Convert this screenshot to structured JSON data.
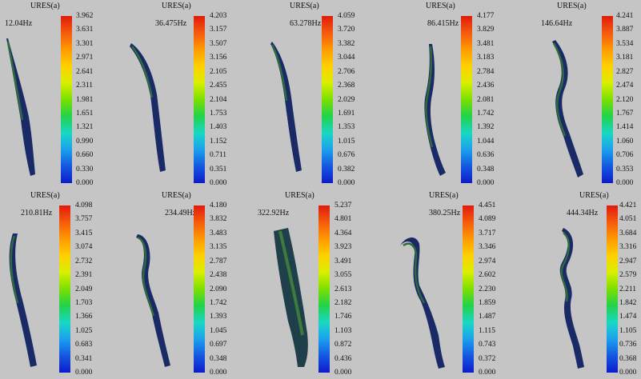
{
  "label": "URES(a)",
  "colors": {
    "background": "#c5c5c5",
    "scale_top": "#e11a0c",
    "scale_bottom": "#0d1bcc",
    "model_dark": "#1a2a66",
    "model_mid": "#2f6a3a"
  },
  "panels": [
    {
      "freq": "12.04Hz",
      "ticks": [
        "3.962",
        "3.631",
        "3.301",
        "2.971",
        "2.641",
        "2.311",
        "1.981",
        "1.651",
        "1.321",
        "0.990",
        "0.660",
        "0.330",
        "0.000"
      ]
    },
    {
      "freq": "36.475Hz",
      "ticks": [
        "4.203",
        "3.157",
        "3.507",
        "3.156",
        "2.105",
        "2.455",
        "2.104",
        "1.753",
        "1.403",
        "1.152",
        "0.711",
        "0.351",
        "0.000"
      ]
    },
    {
      "freq": "63.278Hz",
      "ticks": [
        "4.059",
        "3.720",
        "3.382",
        "3.044",
        "2.706",
        "2.368",
        "2.029",
        "1.691",
        "1.353",
        "1.015",
        "0.676",
        "0.382",
        "0.000"
      ]
    },
    {
      "freq": "86.415Hz",
      "ticks": [
        "4.177",
        "3.829",
        "3.481",
        "3.183",
        "2.784",
        "2.436",
        "2.081",
        "1.742",
        "1.392",
        "1.044",
        "0.636",
        "0.348",
        "0.000"
      ]
    },
    {
      "freq": "146.64Hz",
      "ticks": [
        "4.241",
        "3.887",
        "3.534",
        "3.181",
        "2.827",
        "2.474",
        "2.120",
        "1.767",
        "1.414",
        "1.060",
        "0.706",
        "0.353",
        "0.000"
      ]
    },
    {
      "freq": "210.81Hz",
      "ticks": [
        "4.098",
        "3.757",
        "3.415",
        "3.074",
        "2.732",
        "2.391",
        "2.049",
        "1.703",
        "1.366",
        "1.025",
        "0.683",
        "0.341",
        "0.000"
      ]
    },
    {
      "freq": "234.49Hz",
      "ticks": [
        "4.180",
        "3.832",
        "3.483",
        "3.135",
        "2.787",
        "2.438",
        "2.090",
        "1.742",
        "1.393",
        "1.045",
        "0.697",
        "0.348",
        "0.000"
      ]
    },
    {
      "freq": "322.92Hz",
      "ticks": [
        "5.237",
        "4.801",
        "4.364",
        "3.923",
        "3.491",
        "3.055",
        "2.613",
        "2.182",
        "1.746",
        "1.103",
        "0.872",
        "0.436",
        "0.000"
      ]
    },
    {
      "freq": "380.25Hz",
      "ticks": [
        "4.451",
        "4.089",
        "3.717",
        "3.346",
        "2.974",
        "2.602",
        "2.230",
        "1.859",
        "1.487",
        "1.115",
        "0.743",
        "0.372",
        "0.000"
      ]
    },
    {
      "freq": "444.34Hz",
      "ticks": [
        "4.421",
        "4.051",
        "3.684",
        "3.316",
        "2.947",
        "2.579",
        "2.211",
        "1.842",
        "1.474",
        "1.105",
        "0.736",
        "0.368",
        "0.000"
      ]
    }
  ]
}
